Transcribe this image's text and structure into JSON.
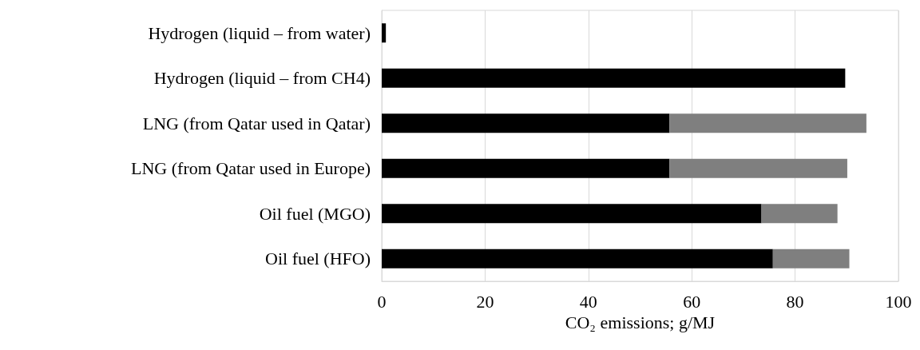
{
  "chart_data": {
    "type": "bar",
    "orientation": "horizontal",
    "stacked": true,
    "xlabel": "CO₂ emissions; g/MJ",
    "categories": [
      "Hydrogen (liquid – from water)",
      "Hydrogen (liquid – from CH4)",
      "LNG (from Qatar used in Qatar)",
      "LNG (from Qatar used in Europe)",
      "Oil fuel (MGO)",
      "Oil fuel (HFO)"
    ],
    "series": [
      {
        "color": "#000000",
        "values": [
          0.8,
          89.7,
          55.7,
          55.7,
          73.5,
          75.7
        ]
      },
      {
        "color": "#7f7f7f",
        "values": [
          null,
          null,
          38.1,
          34.4,
          14.7,
          14.8
        ]
      }
    ],
    "xlim": [
      0,
      100
    ],
    "xticks": [
      0,
      20,
      40,
      60,
      80,
      100
    ],
    "grid": "x"
  }
}
